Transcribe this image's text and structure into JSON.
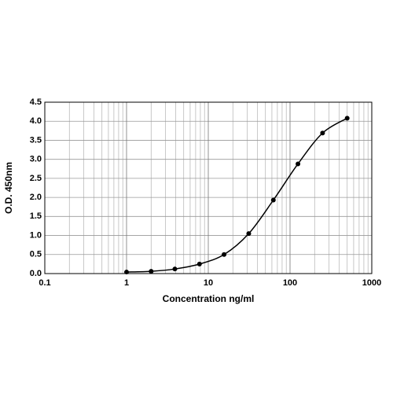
{
  "chart_data": {
    "type": "line",
    "xlabel": "Concentration ng/ml",
    "ylabel": "O.D. 450nm",
    "x": [
      1,
      2,
      3.9,
      7.8,
      15.6,
      31.25,
      62.5,
      125,
      250,
      500
    ],
    "series": [
      {
        "color": "#000000",
        "values": [
          0.04,
          0.06,
          0.12,
          0.25,
          0.5,
          1.05,
          1.93,
          2.88,
          3.69,
          4.08
        ]
      }
    ],
    "xlim": [
      0.1,
      1000
    ],
    "xticks": [
      0.1,
      1,
      10,
      100,
      1000
    ],
    "xscale": "log",
    "ylim": [
      0,
      4.5
    ],
    "yticks": [
      {
        "value": 0,
        "label": "0.0"
      },
      0.5,
      {
        "value": 1,
        "label": "1.0"
      },
      1.5,
      {
        "value": 2,
        "label": "2.0"
      },
      2.5,
      {
        "value": 3,
        "label": "3.0"
      },
      3.5,
      {
        "value": 4,
        "label": "4.0"
      },
      4.5
    ],
    "grid": true,
    "markers": true
  }
}
